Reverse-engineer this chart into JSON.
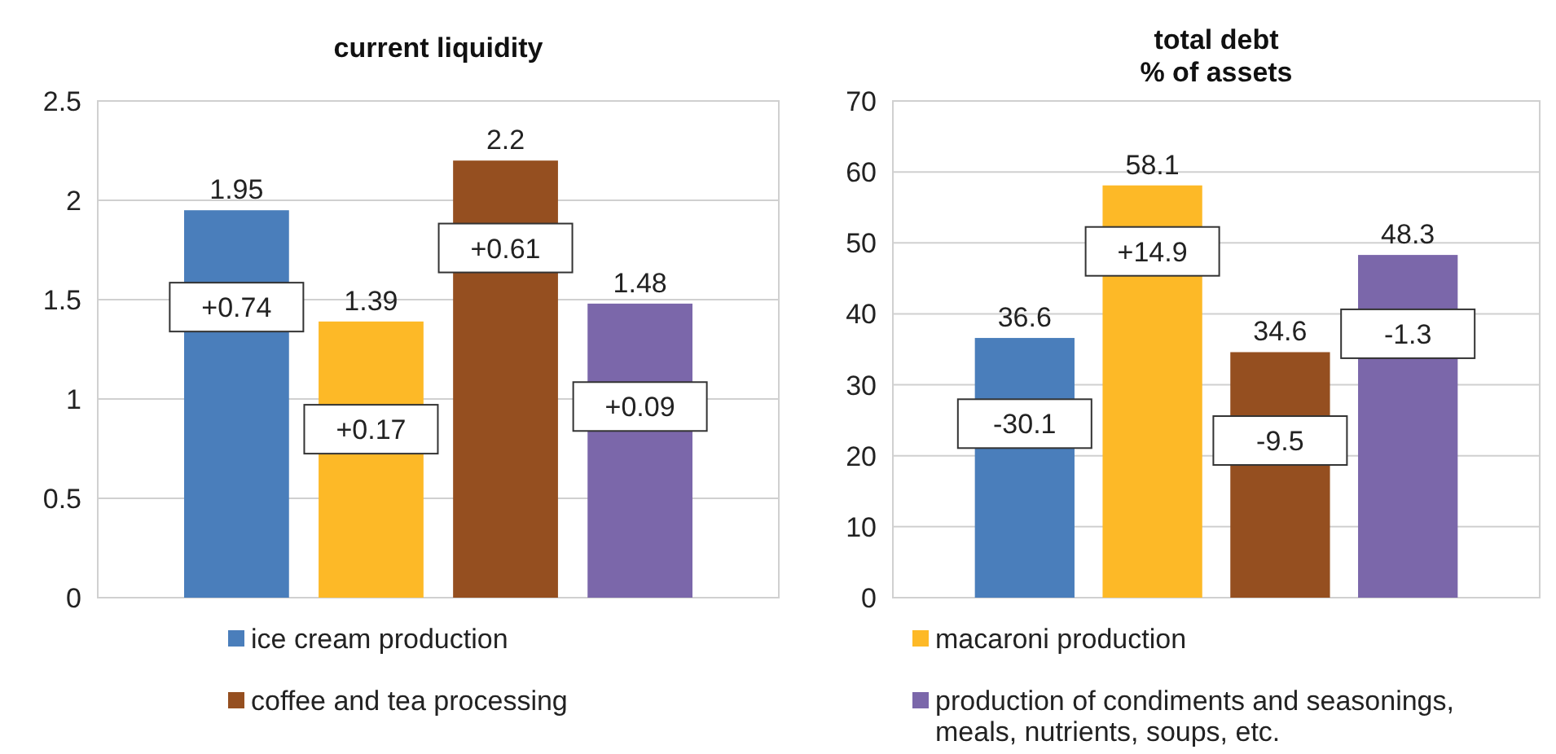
{
  "chart_data": [
    {
      "type": "bar",
      "title": "current liquidity",
      "categories": [
        null
      ],
      "series": [
        {
          "name": "ice cream production",
          "color": "#4a7ebb",
          "values": [
            1.95
          ]
        },
        {
          "name": "macaroni production",
          "color": "#fdb927",
          "values": [
            1.39
          ]
        },
        {
          "name": "coffee and tea processing",
          "color": "#954f20",
          "values": [
            2.2
          ]
        },
        {
          "name": "production of condiments and seasonings, meals, nutrients, soups, etc.",
          "color": "#7b67aa",
          "values": [
            1.48
          ]
        }
      ],
      "ylim": [
        0,
        2.5
      ],
      "yticks": [
        0,
        {
          "value": 0.5,
          "label": "0.5"
        },
        1,
        {
          "value": 1.5,
          "label": "1.5"
        },
        2,
        {
          "value": 2.5,
          "label": "2.5"
        }
      ],
      "grid": "y",
      "data_labels": true,
      "legend": "bottom",
      "annotations": [
        "+0.74",
        "+0.17",
        "+0.61",
        "+0.09"
      ]
    },
    {
      "type": "bar",
      "title": "total debt\n% of assets",
      "categories": [
        null
      ],
      "series": [
        {
          "color": "#4a7ebb",
          "values": [
            36.6
          ]
        },
        {
          "color": "#fdb927",
          "values": [
            58.1
          ]
        },
        {
          "color": "#954f20",
          "values": [
            34.6
          ]
        },
        {
          "color": "#7b67aa",
          "values": [
            48.3
          ]
        }
      ],
      "ylim": [
        0,
        70
      ],
      "yticks": [
        0,
        10,
        20,
        30,
        40,
        50,
        60,
        70
      ],
      "grid": "y",
      "data_labels": true,
      "annotations": [
        "-30.1",
        "+14.9",
        "-9.5",
        "-1.3"
      ]
    }
  ]
}
